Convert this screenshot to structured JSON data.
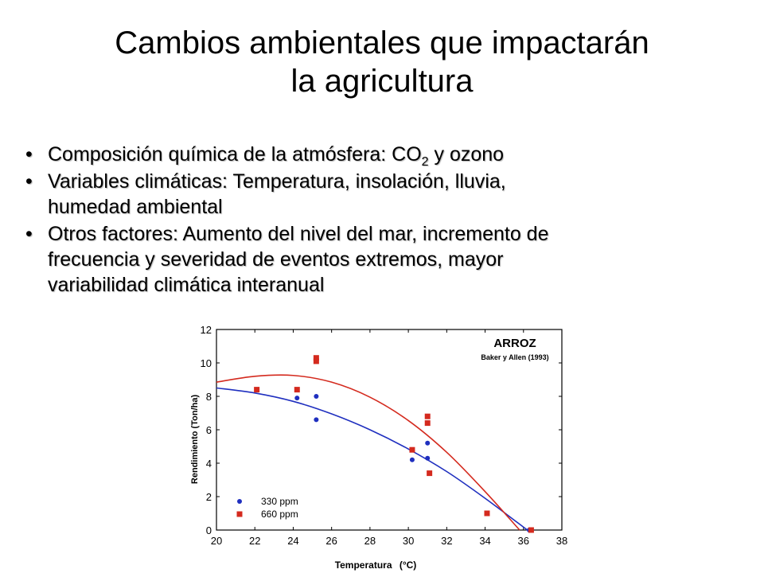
{
  "slide": {
    "title_line1": "Cambios ambientales que impactarán",
    "title_line2": "la agricultura",
    "bullets": [
      {
        "text_before": "Composición química de la atmósfera: CO",
        "subscript": "2",
        "text_after": " y ozono"
      },
      {
        "line1": "Variables climáticas: Temperatura, insolación, lluvia,",
        "line2": "humedad ambiental"
      },
      {
        "line1": "Otros factores: Aumento del nivel del mar, incremento de",
        "line2": "frecuencia y severidad de eventos extremos, mayor",
        "line3": "variabilidad climática interanual"
      }
    ],
    "bullet_char": "•"
  },
  "chart_data": {
    "type": "scatter",
    "title": "ARROZ",
    "subtitle": "Baker y Allen (1993)",
    "xlabel": "Temperatura",
    "xlabel_unit": "(°C)",
    "ylabel": "Rendimiento (Ton/ha)",
    "xlim": [
      20,
      38
    ],
    "ylim": [
      0,
      12
    ],
    "xticks": [
      20,
      22,
      24,
      26,
      28,
      30,
      32,
      34,
      36,
      38
    ],
    "yticks": [
      0,
      2,
      4,
      6,
      8,
      10,
      12
    ],
    "grid": false,
    "legend_position": "bottom-left",
    "series": [
      {
        "name": "330 ppm",
        "marker": "circle",
        "color": "#1f2fbf",
        "points": [
          [
            24.2,
            7.9
          ],
          [
            25.2,
            8.0
          ],
          [
            25.2,
            6.6
          ],
          [
            30.2,
            4.2
          ],
          [
            31.0,
            5.2
          ],
          [
            31.0,
            4.3
          ],
          [
            36.3,
            0.0
          ]
        ],
        "fit_curve": [
          [
            20.0,
            8.5
          ],
          [
            22.0,
            8.2
          ],
          [
            24.0,
            7.7
          ],
          [
            26.0,
            6.95
          ],
          [
            28.0,
            6.0
          ],
          [
            30.0,
            4.85
          ],
          [
            32.0,
            3.5
          ],
          [
            34.0,
            1.9
          ],
          [
            36.2,
            0.0
          ]
        ]
      },
      {
        "name": "660 ppm",
        "marker": "square",
        "color": "#d42a1e",
        "points": [
          [
            22.1,
            8.4
          ],
          [
            24.2,
            8.4
          ],
          [
            25.2,
            10.3
          ],
          [
            25.2,
            10.1
          ],
          [
            30.2,
            4.8
          ],
          [
            31.0,
            6.8
          ],
          [
            31.0,
            6.4
          ],
          [
            31.1,
            3.4
          ],
          [
            34.1,
            1.0
          ],
          [
            36.4,
            0.0
          ]
        ],
        "fit_curve": [
          [
            20.0,
            8.85
          ],
          [
            22.0,
            9.2
          ],
          [
            24.0,
            9.25
          ],
          [
            26.0,
            8.85
          ],
          [
            28.0,
            7.95
          ],
          [
            30.0,
            6.55
          ],
          [
            32.0,
            4.65
          ],
          [
            34.0,
            2.3
          ],
          [
            35.8,
            0.0
          ]
        ]
      }
    ]
  }
}
